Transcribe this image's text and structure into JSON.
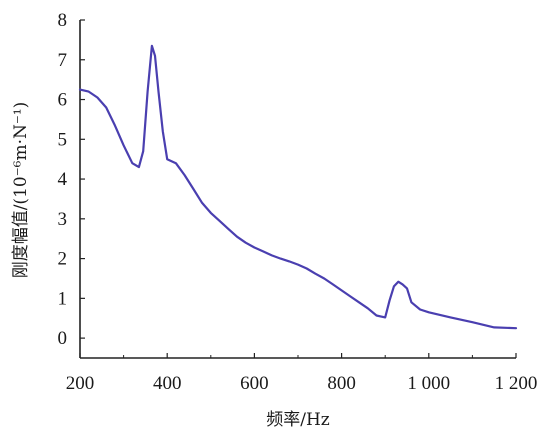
{
  "chart_data": {
    "type": "line",
    "xlabel": "频率/Hz",
    "ylabel": "刚度幅值/(10⁻⁶m·N⁻¹)",
    "xlim": [
      200,
      1200
    ],
    "ylim": [
      -0.5,
      8
    ],
    "x_ticks": [
      200,
      400,
      600,
      800,
      1000,
      1200
    ],
    "x_tick_labels": [
      "200",
      "400",
      "600",
      "800",
      "1 000",
      "1 200"
    ],
    "y_ticks": [
      0,
      1,
      2,
      3,
      4,
      5,
      6,
      7,
      8
    ],
    "y_tick_labels": [
      "0",
      "1",
      "2",
      "3",
      "4",
      "5",
      "6",
      "7",
      "8"
    ],
    "grid": false,
    "series": [
      {
        "color": "#4a3fb0",
        "points": [
          [
            200,
            6.25
          ],
          [
            220,
            6.2
          ],
          [
            240,
            6.05
          ],
          [
            260,
            5.8
          ],
          [
            280,
            5.35
          ],
          [
            300,
            4.85
          ],
          [
            320,
            4.4
          ],
          [
            335,
            4.3
          ],
          [
            345,
            4.7
          ],
          [
            355,
            6.2
          ],
          [
            365,
            7.35
          ],
          [
            372,
            7.1
          ],
          [
            380,
            6.2
          ],
          [
            390,
            5.2
          ],
          [
            400,
            4.5
          ],
          [
            420,
            4.4
          ],
          [
            440,
            4.1
          ],
          [
            460,
            3.75
          ],
          [
            480,
            3.4
          ],
          [
            500,
            3.15
          ],
          [
            520,
            2.95
          ],
          [
            540,
            2.75
          ],
          [
            560,
            2.55
          ],
          [
            580,
            2.4
          ],
          [
            600,
            2.28
          ],
          [
            620,
            2.18
          ],
          [
            640,
            2.08
          ],
          [
            660,
            2.0
          ],
          [
            680,
            1.93
          ],
          [
            700,
            1.85
          ],
          [
            720,
            1.75
          ],
          [
            740,
            1.62
          ],
          [
            760,
            1.5
          ],
          [
            780,
            1.35
          ],
          [
            800,
            1.2
          ],
          [
            820,
            1.05
          ],
          [
            840,
            0.9
          ],
          [
            860,
            0.75
          ],
          [
            880,
            0.57
          ],
          [
            900,
            0.52
          ],
          [
            910,
            0.95
          ],
          [
            920,
            1.3
          ],
          [
            930,
            1.42
          ],
          [
            940,
            1.35
          ],
          [
            950,
            1.25
          ],
          [
            960,
            0.9
          ],
          [
            980,
            0.72
          ],
          [
            1000,
            0.65
          ],
          [
            1050,
            0.52
          ],
          [
            1100,
            0.4
          ],
          [
            1150,
            0.27
          ],
          [
            1200,
            0.25
          ]
        ]
      }
    ]
  }
}
